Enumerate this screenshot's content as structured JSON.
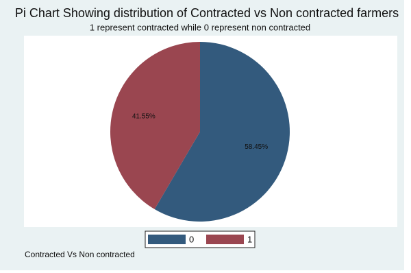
{
  "chart_data": {
    "type": "pie",
    "title": "Pi Chart Showing distribution of Contracted vs Non contracted farmers",
    "subtitle": "1 represent contracted while 0 represent non contracted",
    "note": "Contracted Vs Non contracted",
    "categories": [
      "0",
      "1"
    ],
    "values": [
      58.45,
      41.55
    ],
    "value_labels": [
      "58.45%",
      "41.55%"
    ],
    "colors": [
      "#335a7d",
      "#9a4650"
    ]
  }
}
